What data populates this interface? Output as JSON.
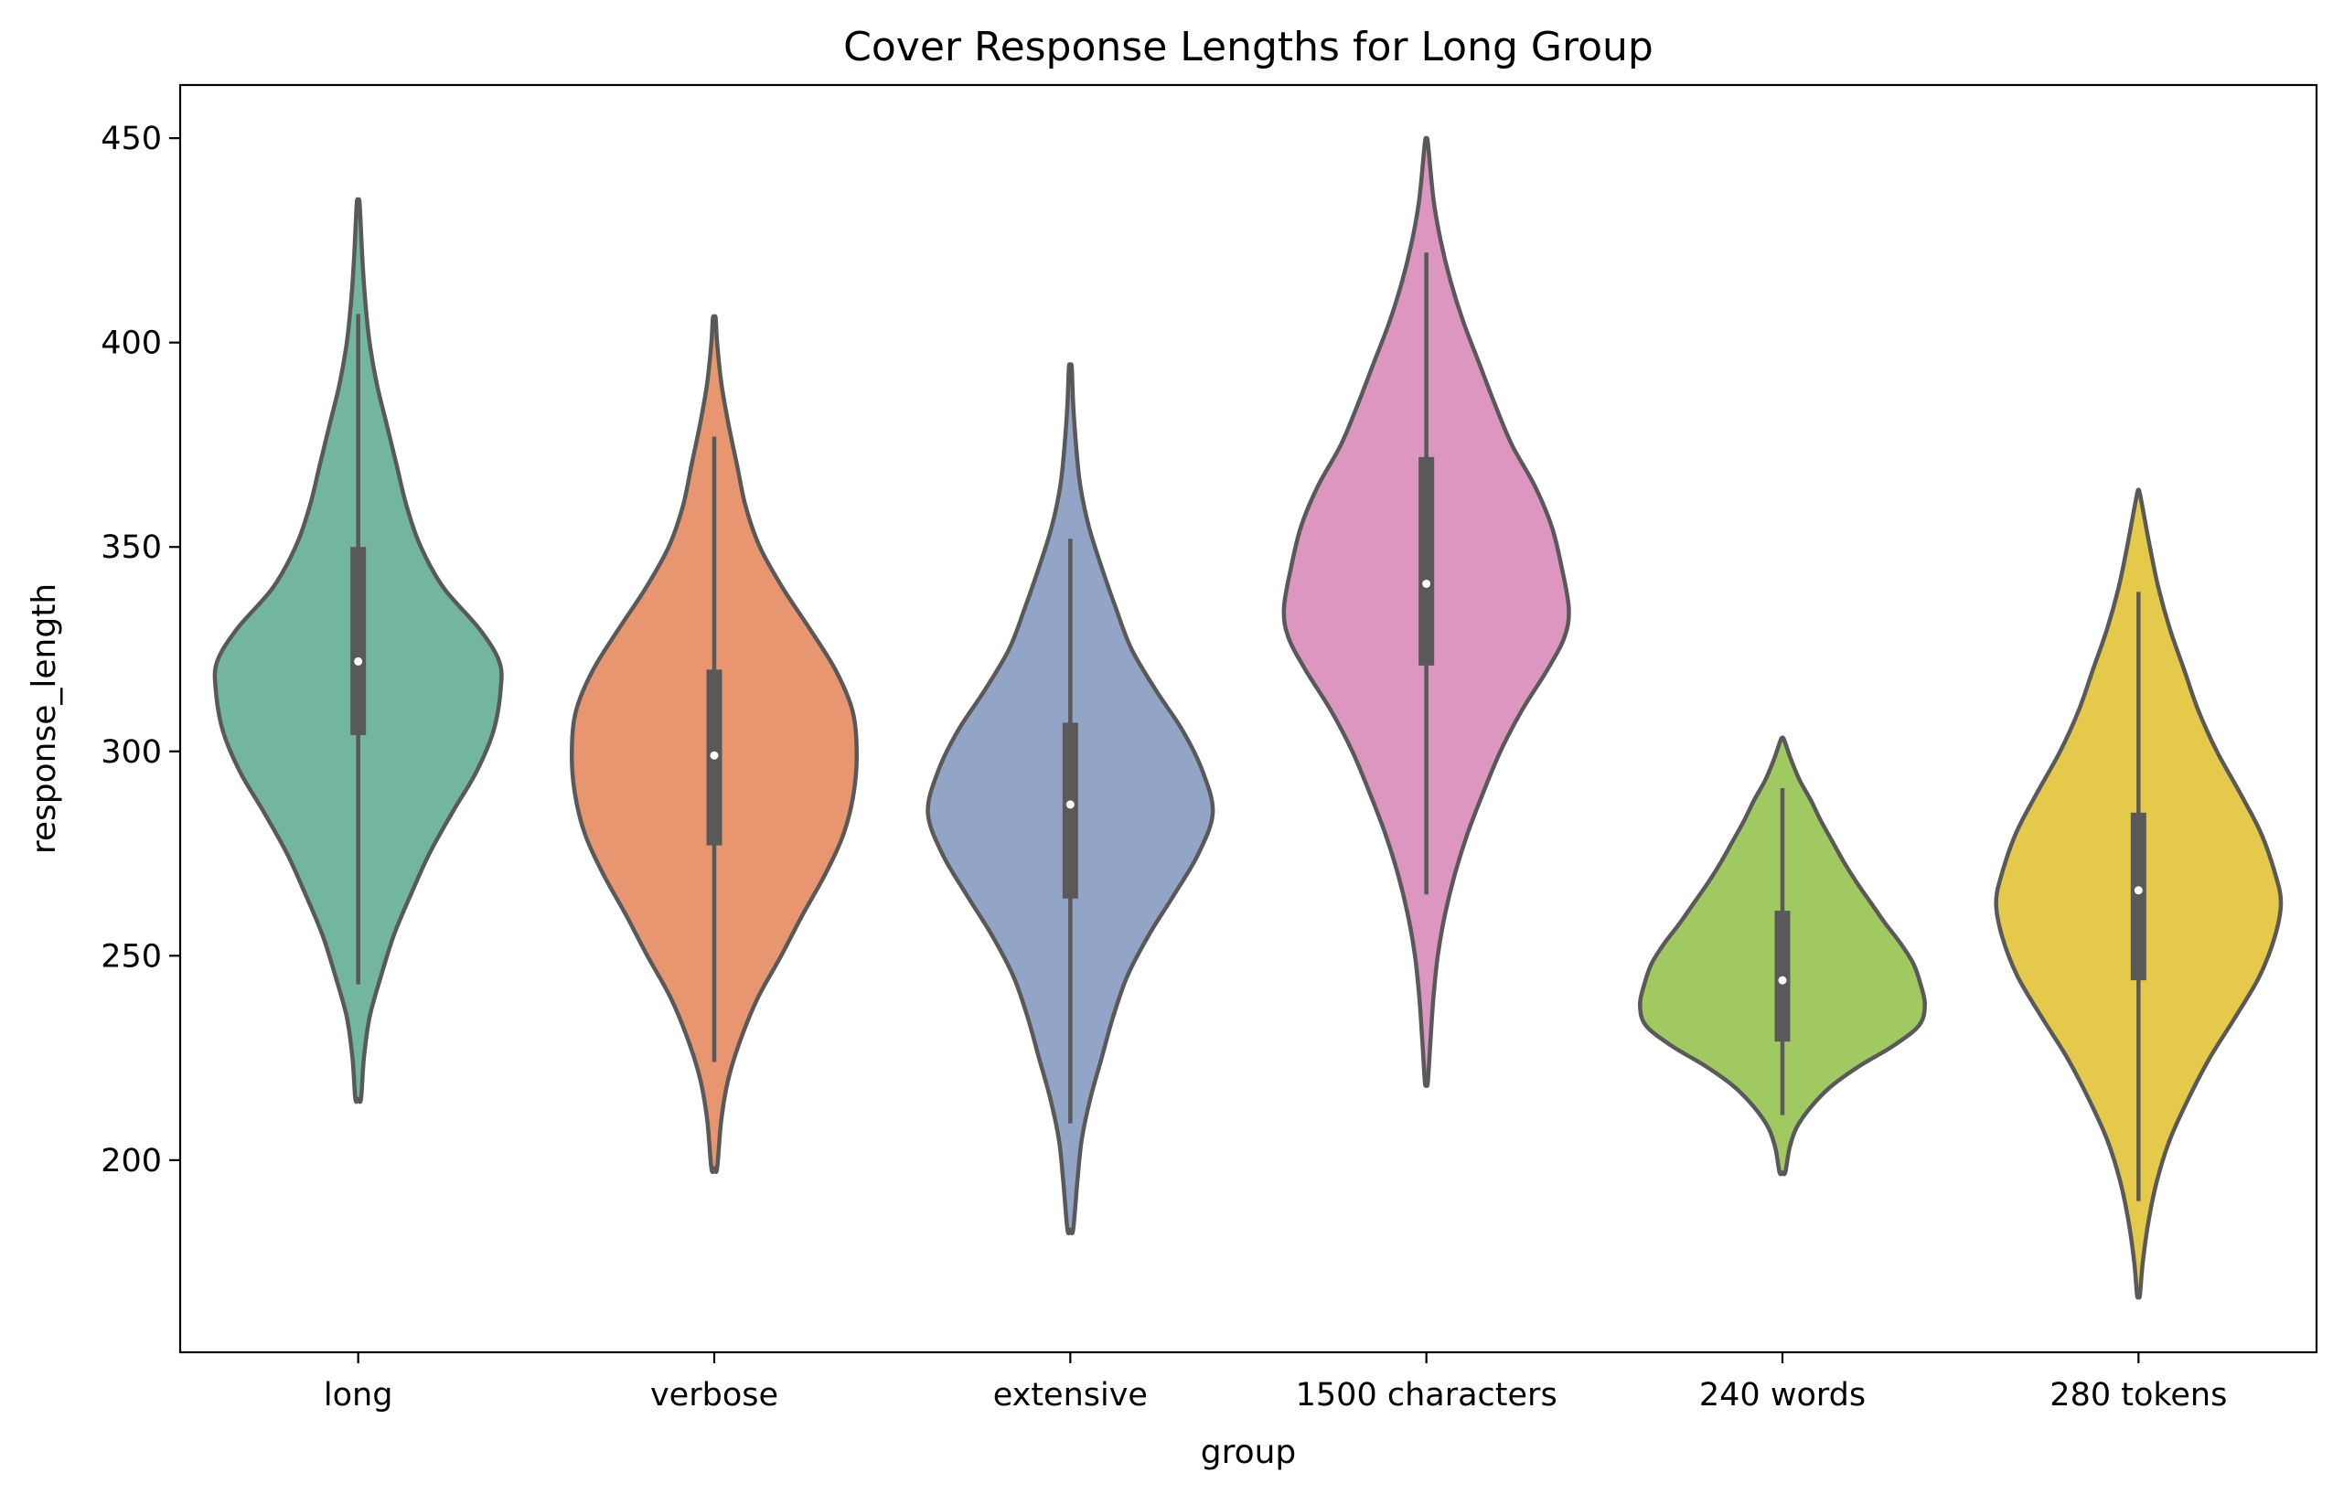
{
  "chart_data": {
    "type": "violin",
    "title": "Cover Response Lengths for Long Group",
    "xlabel": "group",
    "ylabel": "response_length",
    "ylim": [
      153,
      463
    ],
    "yticks": [
      200,
      250,
      300,
      350,
      400,
      450
    ],
    "grid": false,
    "legend": "none",
    "categories": [
      "long",
      "verbose",
      "extensive",
      "1500 characters",
      "240 words",
      "280 tokens"
    ],
    "series": [
      {
        "category": "long",
        "color": "#72b69f",
        "min": 243,
        "q1": 304,
        "median": 322,
        "q3": 350,
        "max": 407,
        "kde_min": 215,
        "kde_max": 434,
        "density": [
          [
            215,
            0.02
          ],
          [
            225,
            0.04
          ],
          [
            235,
            0.08
          ],
          [
            245,
            0.16
          ],
          [
            255,
            0.25
          ],
          [
            265,
            0.37
          ],
          [
            275,
            0.5
          ],
          [
            285,
            0.66
          ],
          [
            295,
            0.83
          ],
          [
            305,
            0.95
          ],
          [
            315,
            1.0
          ],
          [
            322,
            0.99
          ],
          [
            330,
            0.85
          ],
          [
            340,
            0.6
          ],
          [
            350,
            0.44
          ],
          [
            360,
            0.34
          ],
          [
            370,
            0.27
          ],
          [
            380,
            0.2
          ],
          [
            390,
            0.13
          ],
          [
            400,
            0.08
          ],
          [
            410,
            0.05
          ],
          [
            420,
            0.03
          ],
          [
            434,
            0.01
          ]
        ]
      },
      {
        "category": "verbose",
        "color": "#e8966f",
        "min": 224,
        "q1": 277,
        "median": 299,
        "q3": 320,
        "max": 377,
        "kde_min": 198,
        "kde_max": 406,
        "density": [
          [
            198,
            0.02
          ],
          [
            210,
            0.05
          ],
          [
            220,
            0.1
          ],
          [
            230,
            0.19
          ],
          [
            240,
            0.31
          ],
          [
            250,
            0.47
          ],
          [
            260,
            0.62
          ],
          [
            270,
            0.78
          ],
          [
            280,
            0.91
          ],
          [
            290,
            0.98
          ],
          [
            300,
            1.0
          ],
          [
            310,
            0.97
          ],
          [
            320,
            0.85
          ],
          [
            330,
            0.67
          ],
          [
            340,
            0.48
          ],
          [
            350,
            0.32
          ],
          [
            360,
            0.22
          ],
          [
            370,
            0.16
          ],
          [
            380,
            0.1
          ],
          [
            390,
            0.05
          ],
          [
            400,
            0.02
          ],
          [
            406,
            0.01
          ]
        ]
      },
      {
        "category": "extensive",
        "color": "#93a5c6",
        "min": 209,
        "q1": 264,
        "median": 287,
        "q3": 307,
        "max": 352,
        "kde_min": 183,
        "kde_max": 394,
        "density": [
          [
            183,
            0.02
          ],
          [
            195,
            0.05
          ],
          [
            205,
            0.08
          ],
          [
            215,
            0.14
          ],
          [
            225,
            0.22
          ],
          [
            235,
            0.3
          ],
          [
            245,
            0.4
          ],
          [
            255,
            0.55
          ],
          [
            265,
            0.73
          ],
          [
            275,
            0.9
          ],
          [
            285,
            1.0
          ],
          [
            295,
            0.93
          ],
          [
            305,
            0.79
          ],
          [
            315,
            0.6
          ],
          [
            325,
            0.43
          ],
          [
            335,
            0.32
          ],
          [
            345,
            0.22
          ],
          [
            355,
            0.13
          ],
          [
            365,
            0.07
          ],
          [
            375,
            0.04
          ],
          [
            385,
            0.02
          ],
          [
            394,
            0.01
          ]
        ]
      },
      {
        "category": "1500 characters",
        "color": "#dc96c0",
        "min": 265,
        "q1": 321,
        "median": 341,
        "q3": 372,
        "max": 422,
        "kde_min": 219,
        "kde_max": 449,
        "density": [
          [
            219,
            0.01
          ],
          [
            230,
            0.03
          ],
          [
            240,
            0.05
          ],
          [
            250,
            0.08
          ],
          [
            260,
            0.13
          ],
          [
            270,
            0.2
          ],
          [
            280,
            0.29
          ],
          [
            290,
            0.4
          ],
          [
            300,
            0.52
          ],
          [
            310,
            0.67
          ],
          [
            320,
            0.85
          ],
          [
            328,
            0.97
          ],
          [
            335,
            1.0
          ],
          [
            345,
            0.95
          ],
          [
            355,
            0.88
          ],
          [
            365,
            0.76
          ],
          [
            375,
            0.6
          ],
          [
            385,
            0.48
          ],
          [
            395,
            0.37
          ],
          [
            405,
            0.26
          ],
          [
            415,
            0.17
          ],
          [
            425,
            0.1
          ],
          [
            435,
            0.05
          ],
          [
            449,
            0.01
          ]
        ]
      },
      {
        "category": "240 words",
        "color": "#a1c961",
        "min": 211,
        "q1": 229,
        "median": 244,
        "q3": 261,
        "max": 291,
        "kde_min": 197,
        "kde_max": 303,
        "density": [
          [
            197,
            0.02
          ],
          [
            203,
            0.05
          ],
          [
            208,
            0.1
          ],
          [
            213,
            0.2
          ],
          [
            218,
            0.34
          ],
          [
            223,
            0.54
          ],
          [
            228,
            0.78
          ],
          [
            233,
            0.96
          ],
          [
            238,
            1.0
          ],
          [
            243,
            0.97
          ],
          [
            248,
            0.92
          ],
          [
            253,
            0.83
          ],
          [
            258,
            0.72
          ],
          [
            263,
            0.62
          ],
          [
            268,
            0.52
          ],
          [
            273,
            0.43
          ],
          [
            278,
            0.35
          ],
          [
            283,
            0.27
          ],
          [
            288,
            0.2
          ],
          [
            293,
            0.12
          ],
          [
            298,
            0.06
          ],
          [
            303,
            0.01
          ]
        ]
      },
      {
        "category": "280 tokens",
        "color": "#e4c94b",
        "min": 190,
        "q1": 244,
        "median": 266,
        "q3": 285,
        "max": 339,
        "kde_min": 167,
        "kde_max": 363,
        "density": [
          [
            167,
            0.01
          ],
          [
            175,
            0.03
          ],
          [
            185,
            0.07
          ],
          [
            195,
            0.13
          ],
          [
            205,
            0.22
          ],
          [
            215,
            0.35
          ],
          [
            225,
            0.5
          ],
          [
            235,
            0.68
          ],
          [
            245,
            0.85
          ],
          [
            255,
            0.96
          ],
          [
            263,
            1.0
          ],
          [
            270,
            0.96
          ],
          [
            280,
            0.86
          ],
          [
            290,
            0.71
          ],
          [
            300,
            0.55
          ],
          [
            310,
            0.42
          ],
          [
            320,
            0.32
          ],
          [
            330,
            0.22
          ],
          [
            340,
            0.14
          ],
          [
            350,
            0.08
          ],
          [
            363,
            0.01
          ]
        ]
      }
    ]
  }
}
